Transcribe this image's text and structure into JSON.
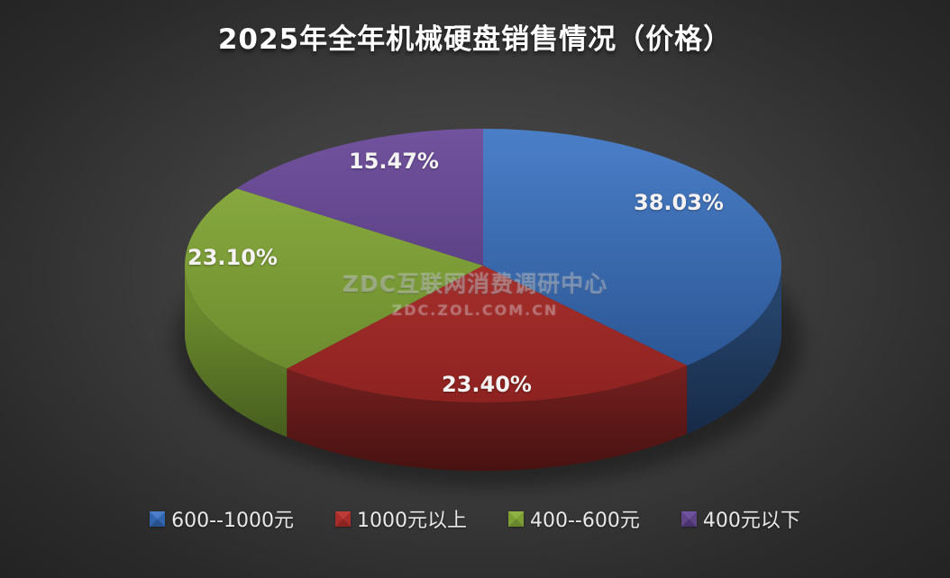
{
  "title": "2025年全年机械硬盘销售情况（价格）",
  "watermark": {
    "line1": "ZDC互联网消费调研中心",
    "line2": "ZDC.ZOL.COM.CN"
  },
  "background_color": "#3e3e3e",
  "chart_data": {
    "type": "pie",
    "style": "3d",
    "title": "2025年全年机械硬盘销售情况（价格）",
    "legend_position": "bottom",
    "start_angle_deg": 0,
    "clockwise": true,
    "series": [
      {
        "name": "600--1000元",
        "value": 38.03,
        "label": "38.03%",
        "color": "#3265AE",
        "color_light": "#4A7FC8",
        "color_dark": "#27508D",
        "wall_top": "#254369",
        "wall_bottom": "#12233E"
      },
      {
        "name": "1000元以上",
        "value": 23.4,
        "label": "23.40%",
        "color": "#A72D2B",
        "color_light": "#BC3C38",
        "color_dark": "#8D2220",
        "wall_top": "#8F2826",
        "wall_bottom": "#471211"
      },
      {
        "name": "400--600元",
        "value": 23.1,
        "label": "23.10%",
        "color": "#7C9E35",
        "color_light": "#8FB244",
        "color_dark": "#68862B",
        "wall_top": "#6C8B2D",
        "wall_bottom": "#3C511A"
      },
      {
        "name": "400元以下",
        "value": 15.47,
        "label": "15.47%",
        "color": "#5F4487",
        "color_light": "#71529E",
        "color_dark": "#4B3370",
        "wall_top": "#4E3770",
        "wall_bottom": "#2B1E40"
      }
    ]
  }
}
